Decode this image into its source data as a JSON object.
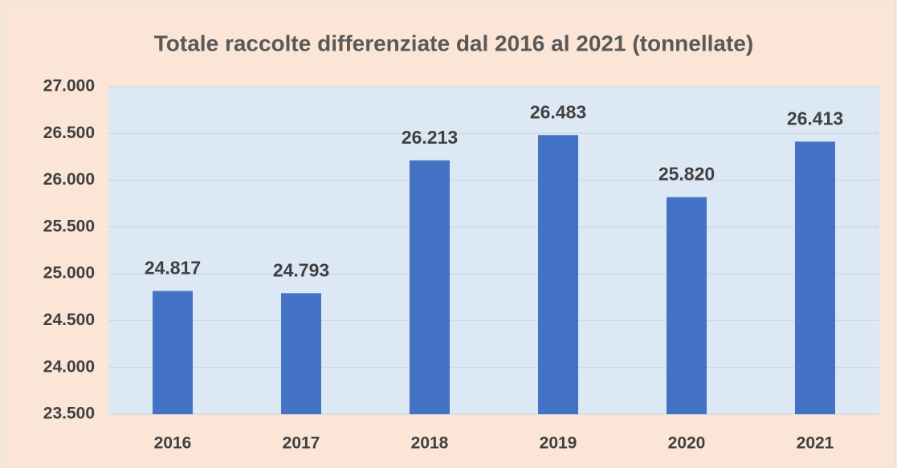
{
  "chart_data": {
    "type": "bar",
    "title": "Totale raccolte differenziate dal 2016 al 2021 (tonnellate)",
    "categories": [
      "2016",
      "2017",
      "2018",
      "2019",
      "2020",
      "2021"
    ],
    "values": [
      24817,
      24793,
      26213,
      26483,
      25820,
      26413
    ],
    "value_labels": [
      "24.817",
      "24.793",
      "26.213",
      "26.483",
      "25.820",
      "26.413"
    ],
    "color": "#4472c4",
    "ylim": [
      23500,
      27000
    ],
    "yticks": [
      {
        "value": 23500,
        "label": "23.500"
      },
      {
        "value": 24000,
        "label": "24.000"
      },
      {
        "value": 24500,
        "label": "24.500"
      },
      {
        "value": 25000,
        "label": "25.000"
      },
      {
        "value": 25500,
        "label": "25.500"
      },
      {
        "value": 26000,
        "label": "26.000"
      },
      {
        "value": 26500,
        "label": "26.500"
      },
      {
        "value": 27000,
        "label": "27.000"
      }
    ],
    "grid": true
  }
}
